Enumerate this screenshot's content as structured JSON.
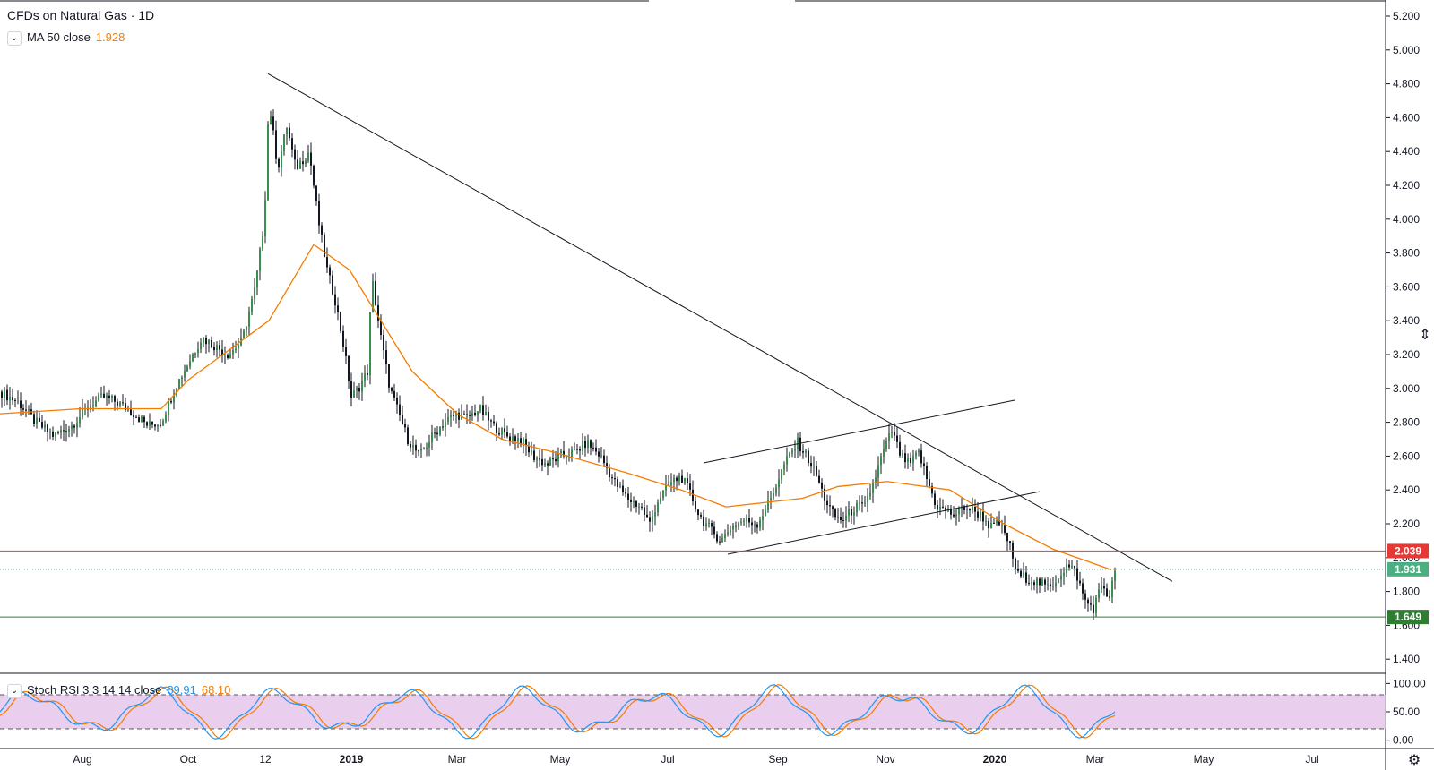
{
  "header": {
    "symbol_title": "CFDs on Natural Gas · 1D",
    "ma_label": "MA 50 close",
    "ma_value": "1.928",
    "stoch_label": "Stoch RSI 3 3 14 14 close",
    "stoch_k_value": "89.91",
    "stoch_d_value": "68.10"
  },
  "colors": {
    "up_candle": "#26a69a",
    "candle_body_up": "#3b8f4d",
    "down_candle": "#131722",
    "ma_line": "#f57c00",
    "resistance_line": "#e53935",
    "support_line": "#2e7d32",
    "current_price_line": "#4caf82",
    "stoch_k": "#2196f3",
    "stoch_d": "#f57c00",
    "stoch_band_fill": "#e1bee7"
  },
  "price_axis": {
    "ticks": [
      "5.200",
      "5.000",
      "4.800",
      "4.600",
      "4.400",
      "4.200",
      "4.000",
      "3.800",
      "3.600",
      "3.400",
      "3.200",
      "3.000",
      "2.800",
      "2.600",
      "2.400",
      "2.200",
      "2.000",
      "1.800",
      "1.600",
      "1.400"
    ]
  },
  "stoch_axis": {
    "ticks": [
      "100.00",
      "50.00",
      "0.00"
    ]
  },
  "time_axis": {
    "labels": [
      "Aug",
      "Oct",
      "12",
      "2019",
      "Mar",
      "May",
      "Jul",
      "Sep",
      "Nov",
      "2020",
      "Mar",
      "May",
      "Jul"
    ]
  },
  "price_badges": {
    "resistance": "2.039",
    "current": "1.931",
    "support": "1.649"
  },
  "chart_data": {
    "type": "line",
    "title": "CFDs on Natural Gas · 1D",
    "series": [
      {
        "name": "CFDs on Natural Gas",
        "x": [
          "2018-07",
          "2018-08",
          "2018-09",
          "2018-10",
          "2018-11-12",
          "2018-12",
          "2019-01",
          "2019-02",
          "2019-03",
          "2019-04",
          "2019-05",
          "2019-06",
          "2019-07",
          "2019-08",
          "2019-09",
          "2019-10",
          "2019-11",
          "2019-12",
          "2020-01",
          "2020-02",
          "2020-03"
        ],
        "values": [
          2.95,
          2.75,
          2.95,
          3.2,
          4.7,
          4.4,
          3.0,
          2.6,
          2.85,
          2.7,
          2.6,
          2.3,
          2.45,
          2.1,
          2.68,
          2.25,
          2.75,
          2.3,
          2.15,
          1.85,
          1.931
        ]
      },
      {
        "name": "MA 50 close",
        "x": [
          "2018-07",
          "2018-08",
          "2018-09",
          "2018-10",
          "2018-11-12",
          "2018-12",
          "2019-01",
          "2019-02",
          "2019-03",
          "2019-04",
          "2019-05",
          "2019-06",
          "2019-07",
          "2019-08",
          "2019-09",
          "2019-10",
          "2019-11",
          "2019-12",
          "2020-01",
          "2020-02",
          "2020-03"
        ],
        "values": [
          2.85,
          2.88,
          2.88,
          3.05,
          3.4,
          3.85,
          3.7,
          3.1,
          2.85,
          2.7,
          2.62,
          2.5,
          2.4,
          2.3,
          2.35,
          2.42,
          2.45,
          2.4,
          2.2,
          2.05,
          1.928
        ]
      }
    ],
    "horizontal_levels": [
      2.039,
      1.931,
      1.649
    ],
    "ylim": [
      1.3,
      5.25
    ]
  }
}
